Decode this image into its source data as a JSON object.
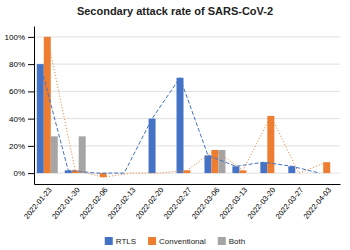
{
  "chart_data": {
    "type": "bar",
    "title": "Secondary attack rate of SARS-CoV-2",
    "categories": [
      "2022-01-23",
      "2022-01-30",
      "2022-02-06",
      "2022-02-13",
      "2022-02-20",
      "2022-02-27",
      "2022-03-06",
      "2022-03-13",
      "2022-03-20",
      "2022-03-27",
      "2022-04-03"
    ],
    "series": [
      {
        "name": "RTLS",
        "color": "#4472C4",
        "values": [
          80,
          2,
          0,
          0,
          40,
          70,
          13,
          5,
          8,
          5,
          0
        ],
        "line_style": "dashed"
      },
      {
        "name": "Conventional",
        "color": "#ED7D31",
        "values": [
          100,
          2,
          -3,
          0,
          0,
          2,
          17,
          2,
          42,
          0,
          8
        ],
        "line_style": "dotted"
      },
      {
        "name": "Both",
        "color": "#A5A5A5",
        "values": [
          27,
          27,
          0,
          0,
          0,
          0,
          17,
          0,
          0,
          0,
          0
        ]
      }
    ],
    "ylim": [
      -8,
      108
    ],
    "yticks": [
      {
        "value": 0,
        "label": "0%"
      },
      {
        "value": 20,
        "label": "20%"
      },
      {
        "value": 40,
        "label": "40%"
      },
      {
        "value": 60,
        "label": "60%"
      },
      {
        "value": 80,
        "label": "80%"
      },
      {
        "value": 100,
        "label": "100%"
      }
    ],
    "grid": true,
    "legend": "bottom"
  }
}
